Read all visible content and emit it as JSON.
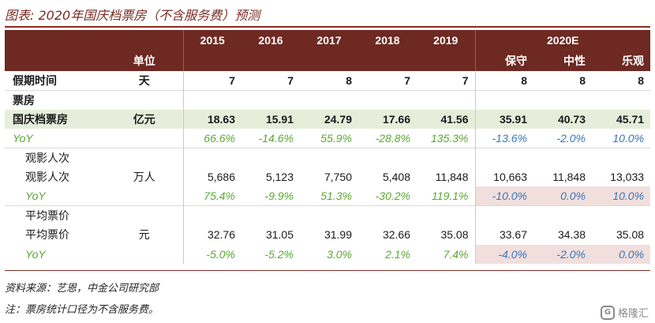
{
  "title": "图表: 2020年国庆档票房（不含服务费）预测",
  "header": {
    "unit_label": "单位",
    "years": [
      "2015",
      "2016",
      "2017",
      "2018",
      "2019"
    ],
    "projection_title": "2020E",
    "scenarios": [
      "保守",
      "中性",
      "乐观"
    ]
  },
  "rows": {
    "holiday_days": {
      "label": "假期时间",
      "unit": "天",
      "values": [
        "7",
        "7",
        "8",
        "7",
        "7",
        "8",
        "8",
        "8"
      ]
    },
    "box_office_section": {
      "label": "票房"
    },
    "national_day_box_office": {
      "label": "国庆档票房",
      "unit": "亿元",
      "values": [
        "18.63",
        "15.91",
        "24.79",
        "17.66",
        "41.56",
        "35.91",
        "40.73",
        "45.71"
      ]
    },
    "box_office_yoy": {
      "label": "YoY",
      "values": [
        "66.6%",
        "-14.6%",
        "55.9%",
        "-28.8%",
        "135.3%",
        "-13.6%",
        "-2.0%",
        "10.0%"
      ]
    },
    "admissions_section": {
      "label": "观影人次"
    },
    "admissions": {
      "label": "观影人次",
      "unit": "万人",
      "values": [
        "5,686",
        "5,123",
        "7,750",
        "5,408",
        "11,848",
        "10,663",
        "11,848",
        "13,033"
      ]
    },
    "admissions_yoy": {
      "label": "YoY",
      "values": [
        "75.4%",
        "-9.9%",
        "51.3%",
        "-30.2%",
        "119.1%",
        "-10.0%",
        "0.0%",
        "10.0%"
      ]
    },
    "avg_price_section": {
      "label": "平均票价"
    },
    "avg_price": {
      "label": "平均票价",
      "unit": "元",
      "values": [
        "32.76",
        "31.05",
        "31.99",
        "32.66",
        "35.08",
        "33.67",
        "34.38",
        "35.08"
      ]
    },
    "avg_price_yoy": {
      "label": "YoY",
      "values": [
        "-5.0%",
        "-5.2%",
        "3.0%",
        "2.1%",
        "7.4%",
        "-4.0%",
        "-2.0%",
        "0.0%"
      ]
    }
  },
  "source": "资料来源：艺恩，中金公司研究部",
  "note": "注：票房统计口径为不含服务费。",
  "watermark": "格隆汇",
  "colors": {
    "header_bg": "#6d2922",
    "yoy_green": "#5aa832",
    "yoy_blue": "#3a76b8",
    "band_green": "#e6eedb",
    "band_pink": "#f1dfdd"
  }
}
